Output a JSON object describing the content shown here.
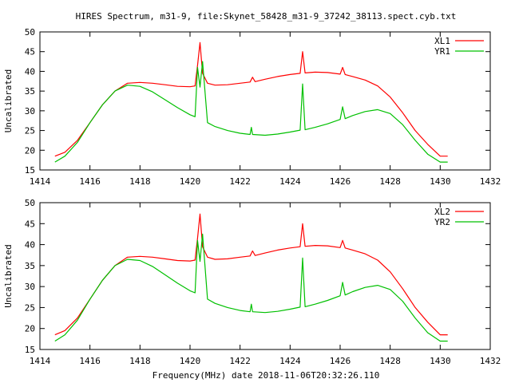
{
  "title": "HIRES Spectrum, m31-9, file:Skynet_58428_m31-9_37242_38113.spect.cyb.txt",
  "xlabel": "Frequency(MHz) date 2018-11-06T20:32:26.110",
  "chart_data": [
    {
      "type": "line",
      "ylabel": "Uncalibrated",
      "xlim": [
        1414,
        1432
      ],
      "ylim": [
        15,
        50
      ],
      "xticks": [
        1414,
        1416,
        1418,
        1420,
        1422,
        1424,
        1426,
        1428,
        1430,
        1432
      ],
      "yticks": [
        15,
        20,
        25,
        30,
        35,
        40,
        45,
        50
      ],
      "legend_position": "top-right",
      "grid": false,
      "series": [
        {
          "name": "XL1",
          "color": "#ff0000",
          "x": [
            1414.6,
            1415.0,
            1415.5,
            1416.0,
            1416.5,
            1417.0,
            1417.5,
            1418.0,
            1418.5,
            1419.0,
            1419.5,
            1420.0,
            1420.2,
            1420.3,
            1420.4,
            1420.5,
            1420.7,
            1421.0,
            1421.5,
            1422.0,
            1422.4,
            1422.5,
            1422.6,
            1423.0,
            1423.5,
            1424.0,
            1424.4,
            1424.5,
            1424.6,
            1425.0,
            1425.5,
            1426.0,
            1426.1,
            1426.2,
            1426.5,
            1427.0,
            1427.5,
            1428.0,
            1428.5,
            1429.0,
            1429.5,
            1430.0,
            1430.3
          ],
          "y": [
            18.5,
            19.5,
            22.5,
            27.0,
            31.5,
            35.0,
            37.0,
            37.2,
            37.0,
            36.6,
            36.2,
            36.1,
            36.3,
            41.5,
            47.3,
            39.5,
            37.0,
            36.5,
            36.6,
            37.0,
            37.3,
            38.5,
            37.4,
            38.0,
            38.7,
            39.2,
            39.5,
            45.0,
            39.6,
            39.8,
            39.7,
            39.3,
            41.0,
            39.2,
            38.7,
            37.8,
            36.3,
            33.5,
            29.5,
            25.0,
            21.5,
            18.5,
            18.5
          ]
        },
        {
          "name": "YR1",
          "color": "#00c000",
          "x": [
            1414.6,
            1415.0,
            1415.5,
            1416.0,
            1416.5,
            1417.0,
            1417.5,
            1418.0,
            1418.5,
            1419.0,
            1419.5,
            1420.0,
            1420.2,
            1420.3,
            1420.4,
            1420.5,
            1420.7,
            1421.0,
            1421.5,
            1422.0,
            1422.4,
            1422.45,
            1422.5,
            1423.0,
            1423.5,
            1424.0,
            1424.4,
            1424.5,
            1424.6,
            1425.0,
            1425.5,
            1426.0,
            1426.1,
            1426.2,
            1426.5,
            1427.0,
            1427.5,
            1428.0,
            1428.5,
            1429.0,
            1429.5,
            1430.0,
            1430.3
          ],
          "y": [
            17.0,
            18.5,
            22.0,
            27.0,
            31.5,
            35.0,
            36.5,
            36.2,
            34.8,
            32.8,
            30.8,
            29.0,
            28.5,
            41.0,
            36.0,
            42.5,
            27.0,
            26.0,
            25.0,
            24.3,
            24.0,
            25.8,
            24.0,
            23.8,
            24.1,
            24.6,
            25.1,
            36.8,
            25.2,
            25.8,
            26.7,
            27.8,
            31.0,
            28.0,
            28.8,
            29.8,
            30.3,
            29.3,
            26.5,
            22.5,
            19.0,
            17.0,
            17.0
          ]
        }
      ]
    },
    {
      "type": "line",
      "ylabel": "Uncalibrated",
      "xlim": [
        1414,
        1432
      ],
      "ylim": [
        15,
        50
      ],
      "xticks": [
        1414,
        1416,
        1418,
        1420,
        1422,
        1424,
        1426,
        1428,
        1430,
        1432
      ],
      "yticks": [
        15,
        20,
        25,
        30,
        35,
        40,
        45,
        50
      ],
      "legend_position": "top-right",
      "grid": false,
      "series": [
        {
          "name": "XL2",
          "color": "#ff0000",
          "x": [
            1414.6,
            1415.0,
            1415.5,
            1416.0,
            1416.5,
            1417.0,
            1417.5,
            1418.0,
            1418.5,
            1419.0,
            1419.5,
            1420.0,
            1420.2,
            1420.3,
            1420.4,
            1420.5,
            1420.7,
            1421.0,
            1421.5,
            1422.0,
            1422.4,
            1422.5,
            1422.6,
            1423.0,
            1423.5,
            1424.0,
            1424.4,
            1424.5,
            1424.6,
            1425.0,
            1425.5,
            1426.0,
            1426.1,
            1426.2,
            1426.5,
            1427.0,
            1427.5,
            1428.0,
            1428.5,
            1429.0,
            1429.5,
            1430.0,
            1430.3
          ],
          "y": [
            18.5,
            19.5,
            22.5,
            27.0,
            31.5,
            35.0,
            37.0,
            37.2,
            37.0,
            36.6,
            36.2,
            36.1,
            36.3,
            41.5,
            47.3,
            39.5,
            37.0,
            36.5,
            36.6,
            37.0,
            37.3,
            38.5,
            37.4,
            38.0,
            38.7,
            39.2,
            39.5,
            45.0,
            39.6,
            39.8,
            39.7,
            39.3,
            41.0,
            39.2,
            38.7,
            37.8,
            36.3,
            33.5,
            29.5,
            25.0,
            21.5,
            18.5,
            18.5
          ]
        },
        {
          "name": "YR2",
          "color": "#00c000",
          "x": [
            1414.6,
            1415.0,
            1415.5,
            1416.0,
            1416.5,
            1417.0,
            1417.5,
            1418.0,
            1418.5,
            1419.0,
            1419.5,
            1420.0,
            1420.2,
            1420.3,
            1420.4,
            1420.5,
            1420.7,
            1421.0,
            1421.5,
            1422.0,
            1422.4,
            1422.45,
            1422.5,
            1423.0,
            1423.5,
            1424.0,
            1424.4,
            1424.5,
            1424.6,
            1425.0,
            1425.5,
            1426.0,
            1426.1,
            1426.2,
            1426.5,
            1427.0,
            1427.5,
            1428.0,
            1428.5,
            1429.0,
            1429.5,
            1430.0,
            1430.3
          ],
          "y": [
            17.0,
            18.5,
            22.0,
            27.0,
            31.5,
            35.0,
            36.5,
            36.2,
            34.8,
            32.8,
            30.8,
            29.0,
            28.5,
            41.0,
            36.0,
            42.5,
            27.0,
            26.0,
            25.0,
            24.3,
            24.0,
            25.8,
            24.0,
            23.8,
            24.1,
            24.6,
            25.1,
            36.8,
            25.2,
            25.8,
            26.7,
            27.8,
            31.0,
            28.0,
            28.8,
            29.8,
            30.3,
            29.3,
            26.5,
            22.5,
            19.0,
            17.0,
            17.0
          ]
        }
      ]
    }
  ]
}
